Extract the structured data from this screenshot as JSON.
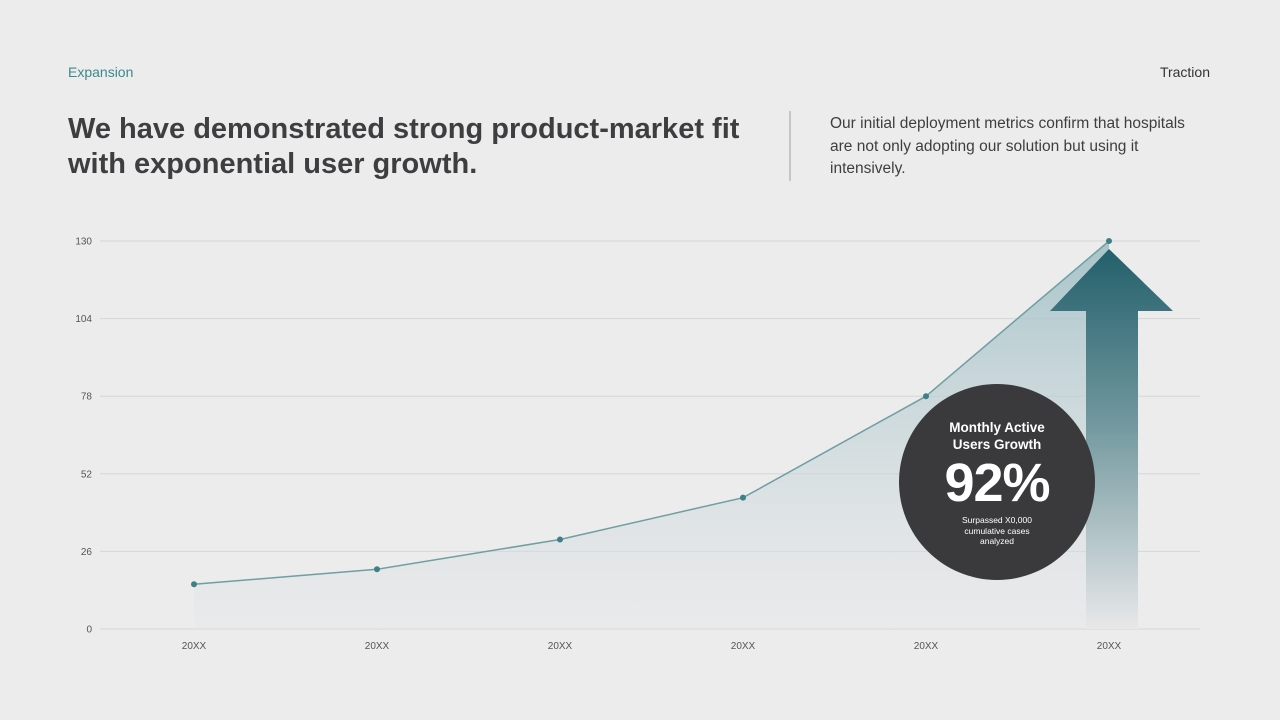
{
  "header": {
    "eyebrow": "Expansion",
    "section": "Traction",
    "headline": "We have demonstrated strong product-market fit with exponential user growth.",
    "subtext": "Our initial deployment metrics confirm that hospitals are not only adopting our solution but using it intensively."
  },
  "callout": {
    "title": "Monthly Active Users Growth",
    "value": "92%",
    "note": "Surpassed X0,000 cumulative cases analyzed",
    "icon": "up-arrow-icon"
  },
  "colors": {
    "background": "#ececed",
    "accent": "#3a8a8a",
    "line": "#6f9ea3",
    "point": "#3f7f87",
    "arrow_top": "#235f6b",
    "badge": "#3a3a3c",
    "grid": "#d6d6d8"
  },
  "chart_data": {
    "type": "area",
    "title": "",
    "xlabel": "",
    "ylabel": "",
    "categories": [
      "20XX",
      "20XX",
      "20XX",
      "20XX",
      "20XX",
      "20XX"
    ],
    "series": [
      {
        "name": "Monthly Active Users",
        "values": [
          15,
          20,
          30,
          44,
          78,
          130
        ]
      }
    ],
    "yticks": [
      0,
      26,
      52,
      78,
      104,
      130
    ],
    "ylim": [
      0,
      130
    ],
    "grid": true,
    "legend": "none"
  }
}
